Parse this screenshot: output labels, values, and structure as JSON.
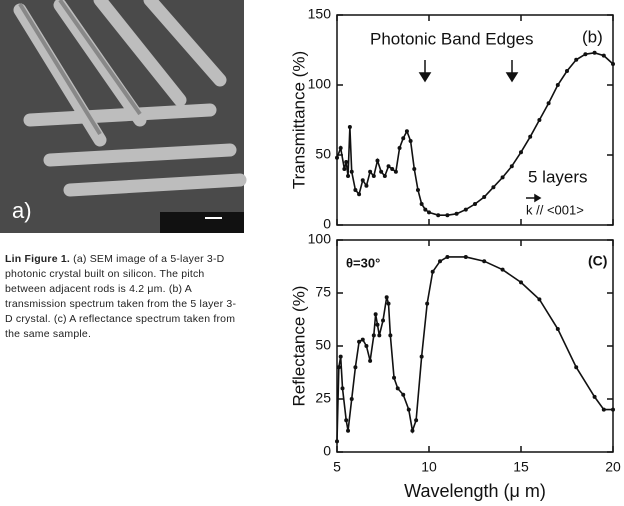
{
  "image_label": "a)",
  "caption": {
    "label": "Lin Figure 1.",
    "text": "(a) SEM image of a 5-layer 3-D photonic crystal built on silicon. The pitch between adjacent rods is 4.2 μm. (b) A transmission spectrum taken from the 5 layer 3-D crystal. (c) A reflectance spectrum taken from the same sample."
  },
  "chart_data": [
    {
      "type": "line",
      "ylabel": "Transmittance (%)",
      "color": "#111",
      "marker": true,
      "xtick_labels": false,
      "annotations": [
        "Photonic Band Edges",
        "(b)",
        "5 layers",
        "k // <001>"
      ],
      "x": [
        5.0,
        5.2,
        5.4,
        5.5,
        5.6,
        5.7,
        5.8,
        6.0,
        6.2,
        6.4,
        6.6,
        6.8,
        7.0,
        7.2,
        7.4,
        7.6,
        7.8,
        8.0,
        8.2,
        8.4,
        8.6,
        8.8,
        9.0,
        9.2,
        9.4,
        9.6,
        9.8,
        10.0,
        10.5,
        11.0,
        11.5,
        12.0,
        12.5,
        13.0,
        13.5,
        14.0,
        14.5,
        15.0,
        15.5,
        16.0,
        16.5,
        17.0,
        17.5,
        18.0,
        18.5,
        19.0,
        19.5,
        20.0
      ],
      "values": [
        48,
        55,
        40,
        45,
        35,
        70,
        38,
        25,
        22,
        32,
        28,
        38,
        35,
        46,
        38,
        35,
        42,
        40,
        38,
        55,
        62,
        67,
        60,
        40,
        25,
        15,
        11,
        9,
        7,
        7,
        8,
        11,
        15,
        20,
        27,
        34,
        42,
        52,
        63,
        75,
        87,
        100,
        110,
        118,
        122,
        123,
        121,
        115
      ],
      "xlim": [
        5,
        20
      ],
      "xticks": [
        5,
        10,
        15,
        20
      ],
      "ylim": [
        0,
        150
      ],
      "yticks": [
        0,
        50,
        100,
        150
      ]
    },
    {
      "type": "line",
      "ylabel": "Reflectance (%)",
      "xlabel": "Wavelength (μ m)",
      "color": "#111",
      "marker": true,
      "xtick_labels": true,
      "annotations": [
        "θ=30°",
        "(C)"
      ],
      "x": [
        5.0,
        5.1,
        5.2,
        5.3,
        5.5,
        5.6,
        5.8,
        6.0,
        6.2,
        6.4,
        6.6,
        6.8,
        7.0,
        7.1,
        7.2,
        7.3,
        7.5,
        7.7,
        7.8,
        7.9,
        8.1,
        8.3,
        8.6,
        8.9,
        9.1,
        9.3,
        9.6,
        9.9,
        10.2,
        10.6,
        11.0,
        12.0,
        13.0,
        14.0,
        15.0,
        16.0,
        17.0,
        18.0,
        19.0,
        19.5,
        20.0
      ],
      "values": [
        5,
        40,
        45,
        30,
        15,
        10,
        25,
        40,
        52,
        53,
        50,
        43,
        55,
        65,
        60,
        55,
        62,
        73,
        70,
        55,
        35,
        30,
        27,
        20,
        10,
        15,
        45,
        70,
        85,
        90,
        92,
        92,
        90,
        86,
        80,
        72,
        58,
        40,
        26,
        20,
        20
      ],
      "xlim": [
        5,
        20
      ],
      "xticks": [
        5,
        10,
        15,
        20
      ],
      "ylim": [
        0,
        100
      ],
      "yticks": [
        0,
        25,
        50,
        75,
        100
      ]
    }
  ]
}
